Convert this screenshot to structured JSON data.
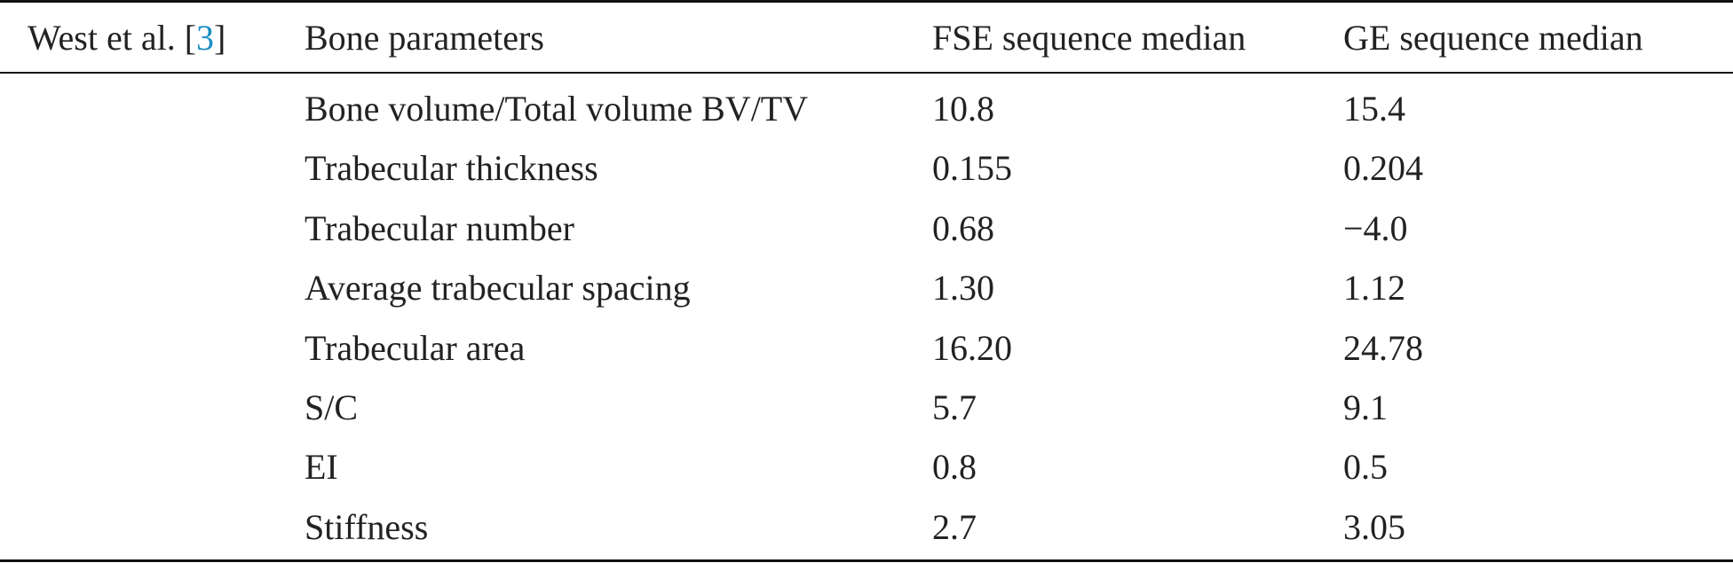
{
  "table": {
    "study": {
      "author": "West et al. [",
      "ref": "3",
      "close": "]"
    },
    "headers": {
      "parameter": "Bone parameters",
      "fse": "FSE sequence median",
      "ge": "GE sequence median"
    },
    "rows": [
      {
        "parameter": "Bone volume/Total volume BV/TV",
        "fse": "10.8",
        "ge": "15.4"
      },
      {
        "parameter": "Trabecular thickness",
        "fse": "0.155",
        "ge": "0.204"
      },
      {
        "parameter": "Trabecular number",
        "fse": "0.68",
        "ge": "−4.0"
      },
      {
        "parameter": "Average trabecular spacing",
        "fse": "1.30",
        "ge": "1.12"
      },
      {
        "parameter": "Trabecular area",
        "fse": "16.20",
        "ge": "24.78"
      },
      {
        "parameter": "S/C",
        "fse": "5.7",
        "ge": "9.1"
      },
      {
        "parameter": "EI",
        "fse": "0.8",
        "ge": "0.5"
      },
      {
        "parameter": "Stiffness",
        "fse": "2.7",
        "ge": "3.05"
      }
    ]
  }
}
